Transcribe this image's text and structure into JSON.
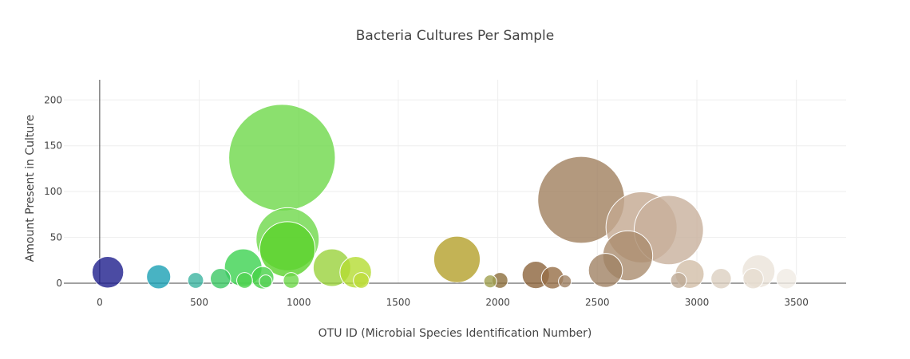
{
  "chart_data": {
    "type": "scatter",
    "title": "Bacteria Cultures Per Sample",
    "xlabel": "OTU ID (Microbial Species Identification Number)",
    "ylabel": "Amount Present in Culture",
    "xlim": [
      -180,
      3750
    ],
    "ylim": [
      0,
      222
    ],
    "x_ticks": [
      0,
      500,
      1000,
      1500,
      2000,
      2500,
      3000,
      3500
    ],
    "y_ticks": [
      0,
      50,
      100,
      150,
      200
    ],
    "grid": true,
    "series": [
      {
        "points": [
          {
            "x": 41,
            "y": 12,
            "color": "#1e1e8c"
          },
          {
            "x": 296,
            "y": 7,
            "color": "#1aa0b4"
          },
          {
            "x": 482,
            "y": 3,
            "color": "#3cb4a0"
          },
          {
            "x": 607,
            "y": 5,
            "color": "#3cc864"
          },
          {
            "x": 721,
            "y": 17,
            "color": "#3cd250"
          },
          {
            "x": 728,
            "y": 3,
            "color": "#50d250"
          },
          {
            "x": 819,
            "y": 6,
            "color": "#46d246"
          },
          {
            "x": 834,
            "y": 2,
            "color": "#5ad25a"
          },
          {
            "x": 916,
            "y": 137,
            "color": "#6ed84a"
          },
          {
            "x": 944,
            "y": 48,
            "color": "#6ed84a"
          },
          {
            "x": 943,
            "y": 37,
            "color": "#5ad22a"
          },
          {
            "x": 962,
            "y": 3,
            "color": "#6ed84a"
          },
          {
            "x": 1167,
            "y": 17,
            "color": "#9ad23c"
          },
          {
            "x": 1286,
            "y": 12,
            "color": "#b4dc32"
          },
          {
            "x": 1314,
            "y": 3,
            "color": "#bedc3c"
          },
          {
            "x": 1795,
            "y": 26,
            "color": "#b4a02a"
          },
          {
            "x": 1962,
            "y": 2,
            "color": "#a0a050"
          },
          {
            "x": 2011,
            "y": 3,
            "color": "#8c6e3c"
          },
          {
            "x": 2191,
            "y": 9,
            "color": "#8c643c"
          },
          {
            "x": 2275,
            "y": 6,
            "color": "#966e46"
          },
          {
            "x": 2337,
            "y": 2,
            "color": "#a08264"
          },
          {
            "x": 2419,
            "y": 91,
            "color": "#a0805e"
          },
          {
            "x": 2541,
            "y": 14,
            "color": "#a08264"
          },
          {
            "x": 2653,
            "y": 30,
            "color": "#aa8c6e"
          },
          {
            "x": 2722,
            "y": 61,
            "color": "#c3a890"
          },
          {
            "x": 2859,
            "y": 58,
            "color": "#c8b09c"
          },
          {
            "x": 2908,
            "y": 3,
            "color": "#beaa96"
          },
          {
            "x": 2964,
            "y": 10,
            "color": "#d2bea8"
          },
          {
            "x": 3122,
            "y": 5,
            "color": "#dcd0c0"
          },
          {
            "x": 3283,
            "y": 5,
            "color": "#e6dcd0"
          },
          {
            "x": 3310,
            "y": 13,
            "color": "#ebe4da"
          },
          {
            "x": 3450,
            "y": 5,
            "color": "#f0ebe4"
          }
        ]
      }
    ]
  }
}
